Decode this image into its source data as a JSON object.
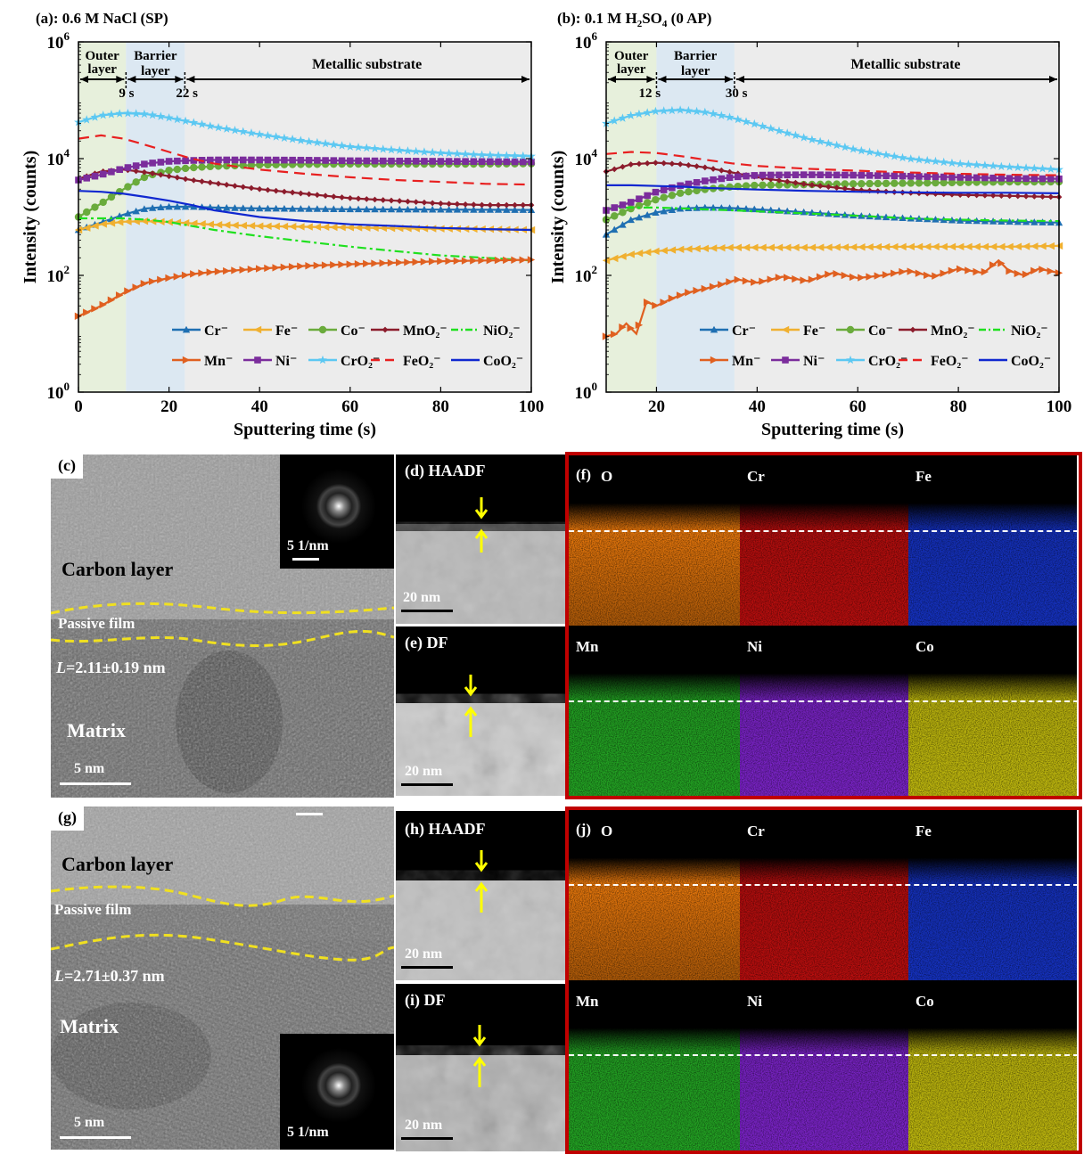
{
  "chart_data": [
    {
      "type": "line",
      "panel_label": "(a): 0.6 M NaCl (SP)",
      "xlabel": "Sputtering time (s)",
      "ylabel": "Intensity (counts)",
      "xlim": [
        0,
        100
      ],
      "ylim": [
        1,
        1000000
      ],
      "y_scale": "log",
      "x_ticks": [
        0,
        20,
        40,
        60,
        80,
        100
      ],
      "y_ticks": [
        "10^0",
        "10^2",
        "10^4",
        "10^6"
      ],
      "regions": [
        {
          "label": "Outer layer",
          "from": 0,
          "to": 10.5,
          "color": "#e7f0dc"
        },
        {
          "label": "Barrier layer",
          "from": 10.5,
          "to": 23.5,
          "color": "#dce8f2"
        },
        {
          "label": "Metallic substrate",
          "from": 23.5,
          "to": 100,
          "color": "#ececec"
        }
      ],
      "markers": [
        {
          "label": "9 s",
          "x": 10.5
        },
        {
          "label": "22 s",
          "x": 23.5
        }
      ],
      "series": [
        {
          "name": "Cr⁻",
          "color": "#1f6fb2",
          "marker": "triangle",
          "x": [
            0,
            5,
            10,
            15,
            20,
            25,
            30,
            40,
            50,
            60,
            70,
            80,
            90,
            100
          ],
          "y": [
            600,
            800,
            1100,
            1400,
            1500,
            1500,
            1450,
            1400,
            1380,
            1360,
            1350,
            1340,
            1330,
            1320
          ]
        },
        {
          "name": "Fe⁻",
          "color": "#f0b030",
          "marker": "tri-left",
          "x": [
            0,
            5,
            10,
            15,
            20,
            25,
            30,
            40,
            50,
            60,
            70,
            80,
            90,
            100
          ],
          "y": [
            600,
            750,
            830,
            850,
            820,
            780,
            740,
            700,
            680,
            660,
            640,
            630,
            620,
            600
          ]
        },
        {
          "name": "Co⁻",
          "color": "#6aab3c",
          "marker": "circle",
          "x": [
            0,
            5,
            10,
            15,
            20,
            25,
            30,
            40,
            50,
            60,
            70,
            80,
            90,
            100
          ],
          "y": [
            1000,
            1700,
            3000,
            5000,
            6300,
            7000,
            7400,
            7800,
            8000,
            8100,
            8100,
            8100,
            8100,
            8200
          ]
        },
        {
          "name": "MnO₂⁻",
          "color": "#8c1c2c",
          "marker": "diamond",
          "x": [
            0,
            5,
            10,
            15,
            20,
            25,
            30,
            40,
            50,
            60,
            70,
            80,
            90,
            100
          ],
          "y": [
            4500,
            6000,
            6500,
            5800,
            5000,
            4300,
            3800,
            3000,
            2500,
            2100,
            1900,
            1700,
            1600,
            1600
          ]
        },
        {
          "name": "NiO₂⁻",
          "color": "#1fe01f",
          "marker": "dashdot",
          "x": [
            0,
            5,
            10,
            15,
            20,
            25,
            30,
            40,
            50,
            60,
            70,
            80,
            90,
            100
          ],
          "y": [
            950,
            950,
            950,
            900,
            820,
            700,
            600,
            470,
            380,
            310,
            260,
            220,
            200,
            180
          ]
        },
        {
          "name": "Mn⁻",
          "color": "#e06020",
          "marker": "tri-right",
          "x": [
            0,
            5,
            10,
            15,
            20,
            25,
            30,
            40,
            50,
            60,
            70,
            80,
            90,
            100
          ],
          "y": [
            20,
            30,
            50,
            75,
            90,
            105,
            115,
            130,
            145,
            155,
            165,
            175,
            180,
            185
          ]
        },
        {
          "name": "Ni⁻",
          "color": "#7b2d9c",
          "marker": "square",
          "x": [
            0,
            5,
            10,
            15,
            20,
            25,
            30,
            40,
            50,
            60,
            70,
            80,
            90,
            100
          ],
          "y": [
            4300,
            5300,
            6800,
            8200,
            9000,
            9300,
            9500,
            9500,
            9400,
            9200,
            9100,
            9000,
            8900,
            8800
          ]
        },
        {
          "name": "CrO₂⁻",
          "color": "#5cc8f2",
          "marker": "star",
          "x": [
            0,
            5,
            10,
            15,
            20,
            25,
            30,
            40,
            50,
            60,
            70,
            80,
            90,
            100
          ],
          "y": [
            42000,
            55000,
            60000,
            58000,
            50000,
            42000,
            35000,
            26000,
            20000,
            16000,
            14000,
            12500,
            11500,
            11000
          ]
        },
        {
          "name": "FeO₂⁻",
          "color": "#e82020",
          "marker": "dash",
          "x": [
            0,
            5,
            10,
            15,
            20,
            25,
            30,
            40,
            50,
            60,
            70,
            80,
            90,
            100
          ],
          "y": [
            22000,
            25000,
            22000,
            17000,
            13000,
            10000,
            8200,
            6500,
            5500,
            4800,
            4300,
            4000,
            3700,
            3600
          ]
        },
        {
          "name": "CoO₂⁻",
          "color": "#1028d0",
          "marker": "solid",
          "x": [
            0,
            5,
            10,
            15,
            20,
            25,
            30,
            40,
            50,
            60,
            70,
            80,
            90,
            100
          ],
          "y": [
            2800,
            2700,
            2500,
            2200,
            1900,
            1600,
            1300,
            1000,
            850,
            750,
            700,
            650,
            620,
            600
          ]
        }
      ]
    },
    {
      "type": "line",
      "panel_label": "(b):  0.1 M H₂SO₄ (0 AP)",
      "xlabel": "Sputtering time (s)",
      "ylabel": "Intensity (counts)",
      "xlim": [
        10,
        100
      ],
      "ylim": [
        1,
        1000000
      ],
      "y_scale": "log",
      "x_ticks": [
        20,
        40,
        60,
        80,
        100
      ],
      "y_ticks": [
        "10^0",
        "10^2",
        "10^4",
        "10^6"
      ],
      "regions": [
        {
          "label": "Outer layer",
          "from": 10,
          "to": 20,
          "color": "#e7f0dc"
        },
        {
          "label": "Barrier layer",
          "from": 20,
          "to": 35.5,
          "color": "#dce8f2"
        },
        {
          "label": "Metallic substrate",
          "from": 35.5,
          "to": 100,
          "color": "#ececec"
        }
      ],
      "markers": [
        {
          "label": "12 s",
          "x": 20
        },
        {
          "label": "30 s",
          "x": 35.5
        }
      ],
      "series": [
        {
          "name": "Cr⁻",
          "color": "#1f6fb2",
          "marker": "triangle",
          "x": [
            10,
            15,
            20,
            25,
            30,
            35,
            40,
            50,
            60,
            70,
            80,
            90,
            100
          ],
          "y": [
            500,
            900,
            1200,
            1400,
            1450,
            1420,
            1350,
            1200,
            1050,
            950,
            870,
            830,
            800
          ]
        },
        {
          "name": "Fe⁻",
          "color": "#f0b030",
          "marker": "tri-left",
          "x": [
            10,
            15,
            20,
            25,
            30,
            35,
            40,
            50,
            60,
            70,
            80,
            90,
            100
          ],
          "y": [
            180,
            230,
            260,
            280,
            290,
            300,
            300,
            300,
            305,
            310,
            310,
            310,
            320
          ]
        },
        {
          "name": "Co⁻",
          "color": "#6aab3c",
          "marker": "circle",
          "x": [
            10,
            15,
            20,
            25,
            30,
            35,
            40,
            50,
            60,
            70,
            80,
            90,
            100
          ],
          "y": [
            900,
            1400,
            2000,
            2600,
            3000,
            3300,
            3500,
            3600,
            3700,
            3800,
            3900,
            4000,
            4000
          ]
        },
        {
          "name": "MnO₂⁻",
          "color": "#8c1c2c",
          "marker": "diamond",
          "x": [
            10,
            15,
            20,
            25,
            30,
            35,
            40,
            50,
            60,
            70,
            80,
            90,
            100
          ],
          "y": [
            6000,
            8000,
            8500,
            8000,
            7000,
            5800,
            4800,
            3600,
            2900,
            2600,
            2400,
            2300,
            2200
          ]
        },
        {
          "name": "NiO₂⁻",
          "color": "#1fe01f",
          "marker": "dashdot",
          "x": [
            10,
            15,
            20,
            25,
            30,
            35,
            40,
            50,
            60,
            70,
            80,
            90,
            100
          ],
          "y": [
            1400,
            1450,
            1450,
            1400,
            1350,
            1300,
            1250,
            1150,
            1050,
            950,
            900,
            870,
            850
          ]
        },
        {
          "name": "Mn⁻",
          "color": "#e06020",
          "marker": "tri-right",
          "x": [
            10,
            12,
            14,
            16,
            18,
            20,
            23,
            26,
            30,
            33,
            36,
            40,
            45,
            50,
            55,
            60,
            65,
            70,
            75,
            80,
            85,
            88,
            90,
            93,
            96,
            100
          ],
          "y": [
            9,
            10,
            15,
            10,
            35,
            30,
            40,
            50,
            60,
            70,
            85,
            75,
            95,
            80,
            110,
            90,
            100,
            120,
            95,
            130,
            110,
            180,
            120,
            100,
            130,
            110
          ]
        },
        {
          "name": "Ni⁻",
          "color": "#7b2d9c",
          "marker": "square",
          "x": [
            10,
            15,
            20,
            25,
            30,
            35,
            40,
            50,
            60,
            70,
            80,
            90,
            100
          ],
          "y": [
            1300,
            1800,
            2700,
            3500,
            4200,
            4800,
            5200,
            5300,
            5200,
            5000,
            4800,
            4600,
            4500
          ]
        },
        {
          "name": "CrO₂⁻",
          "color": "#5cc8f2",
          "marker": "star",
          "x": [
            10,
            15,
            20,
            25,
            30,
            35,
            40,
            50,
            60,
            70,
            80,
            90,
            100
          ],
          "y": [
            40000,
            55000,
            65000,
            68000,
            62000,
            50000,
            38000,
            22000,
            14000,
            10000,
            8200,
            7200,
            6500
          ]
        },
        {
          "name": "FeO₂⁻",
          "color": "#e82020",
          "marker": "dash",
          "x": [
            10,
            15,
            20,
            25,
            30,
            35,
            40,
            50,
            60,
            70,
            80,
            90,
            100
          ],
          "y": [
            12000,
            13000,
            12500,
            11000,
            9500,
            8300,
            7500,
            6700,
            6200,
            5800,
            5500,
            5300,
            5200
          ]
        },
        {
          "name": "CoO₂⁻",
          "color": "#1028d0",
          "marker": "solid",
          "x": [
            10,
            15,
            20,
            25,
            30,
            35,
            40,
            50,
            60,
            70,
            80,
            90,
            100
          ],
          "y": [
            3500,
            3500,
            3400,
            3300,
            3150,
            3050,
            2950,
            2800,
            2700,
            2650,
            2600,
            2600,
            2550
          ]
        }
      ]
    }
  ],
  "figure": {
    "panel_a": {
      "label": "(a): 0.6 M NaCl (SP)",
      "outer": "Outer",
      "layer": "layer",
      "barrier": "Barrier",
      "barrier_layer": "layer",
      "substrate": "Metallic substrate",
      "m1": "9 s",
      "m2": "22 s"
    },
    "panel_b": {
      "label_pre": "(b):  0.1 M H",
      "label_sub1": "2",
      "label_mid": "SO",
      "label_sub2": "4",
      "label_post": " (0 AP)",
      "outer": "Outer",
      "layer": "layer",
      "barrier": "Barrier",
      "barrier_layer": "layer",
      "substrate": "Metallic substrate",
      "m1": "12 s",
      "m2": "30 s"
    },
    "axis": {
      "xlabel": "Sputtering time (s)",
      "ylabel": "Intensity (counts)",
      "y10": "10"
    },
    "panel_c": {
      "tag": "(c)",
      "carbon": "Carbon layer",
      "passive": "Passive film",
      "L": "L",
      "L_val": "=2.11±0.19 nm",
      "matrix": "Matrix",
      "scale": "5 nm",
      "fft_scale": "5 1/nm"
    },
    "panel_d": {
      "tag": "(d) HAADF",
      "scale": "20 nm"
    },
    "panel_e": {
      "tag": "(e) DF",
      "scale": "20 nm"
    },
    "panel_f": {
      "tag": "(f)",
      "O": "O",
      "Cr": "Cr",
      "Fe": "Fe",
      "Mn": "Mn",
      "Ni": "Ni",
      "Co": "Co"
    },
    "panel_g": {
      "tag": "(g)",
      "carbon": "Carbon layer",
      "passive": "Passive film",
      "L": "L",
      "L_val": "=2.71±0.37 nm",
      "matrix": "Matrix",
      "scale": "5 nm",
      "fft_scale": "5 1/nm"
    },
    "panel_h": {
      "tag": "(h) HAADF",
      "scale": "20 nm"
    },
    "panel_i": {
      "tag": "(i) DF",
      "scale": "20 nm"
    },
    "panel_j": {
      "tag": "(j)",
      "O": "O",
      "Cr": "Cr",
      "Fe": "Fe",
      "Mn": "Mn",
      "Ni": "Ni",
      "Co": "Co"
    },
    "map_colors": {
      "O": "#e8780c",
      "Cr": "#d01010",
      "Fe": "#1838d8",
      "Mn": "#28b828",
      "Ni": "#8a28e0",
      "Co": "#d8d010"
    }
  }
}
